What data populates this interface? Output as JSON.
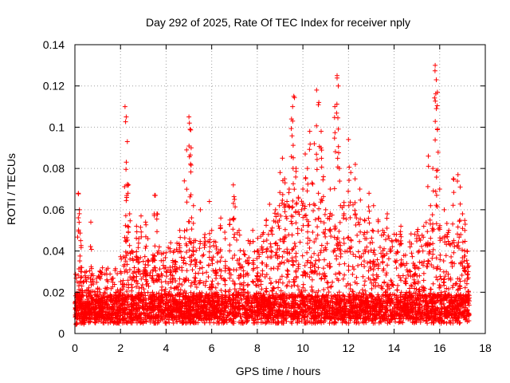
{
  "chart_data": {
    "type": "scatter",
    "title": "Day 292 of 2025, Rate Of TEC Index for receiver nply",
    "xlabel": "GPS time / hours",
    "ylabel": "ROTI / TECUs",
    "xlim": [
      0,
      18
    ],
    "ylim": [
      0,
      0.14
    ],
    "xticks": [
      0,
      2,
      4,
      6,
      8,
      10,
      12,
      14,
      16,
      18
    ],
    "xtick_labels": [
      "0",
      "2",
      "4",
      "6",
      "8",
      "10",
      "12",
      "14",
      "16",
      "18"
    ],
    "yticks": [
      0,
      0.02,
      0.04,
      0.06,
      0.08,
      0.1,
      0.12,
      0.14
    ],
    "ytick_labels": [
      "0",
      "0.02",
      "0.04",
      "0.06",
      "0.08",
      "0.1",
      "0.12",
      "0.14"
    ],
    "grid": true,
    "marker": "plus",
    "color": "#ff0000",
    "points": [
      [
        0.05,
        0.01
      ],
      [
        0.1,
        0.025
      ],
      [
        0.15,
        0.068
      ],
      [
        0.2,
        0.06
      ],
      [
        0.25,
        0.045
      ],
      [
        0.3,
        0.032
      ],
      [
        0.35,
        0.015
      ],
      [
        0.4,
        0.012
      ],
      [
        0.5,
        0.03
      ],
      [
        0.6,
        0.018
      ],
      [
        0.7,
        0.054
      ],
      [
        0.8,
        0.028
      ],
      [
        0.9,
        0.012
      ],
      [
        1.0,
        0.022
      ],
      [
        1.1,
        0.03
      ],
      [
        1.2,
        0.015
      ],
      [
        1.4,
        0.026
      ],
      [
        1.6,
        0.012
      ],
      [
        1.8,
        0.02
      ],
      [
        2.0,
        0.03
      ],
      [
        2.1,
        0.024
      ],
      [
        2.2,
        0.11
      ],
      [
        2.25,
        0.105
      ],
      [
        2.3,
        0.093
      ],
      [
        2.35,
        0.072
      ],
      [
        2.4,
        0.058
      ],
      [
        2.5,
        0.04
      ],
      [
        2.6,
        0.03
      ],
      [
        2.7,
        0.052
      ],
      [
        2.8,
        0.046
      ],
      [
        2.9,
        0.057
      ],
      [
        3.0,
        0.035
      ],
      [
        3.1,
        0.054
      ],
      [
        3.2,
        0.046
      ],
      [
        3.4,
        0.036
      ],
      [
        3.5,
        0.067
      ],
      [
        3.6,
        0.058
      ],
      [
        3.7,
        0.042
      ],
      [
        3.8,
        0.025
      ],
      [
        4.0,
        0.03
      ],
      [
        4.2,
        0.044
      ],
      [
        4.4,
        0.035
      ],
      [
        4.6,
        0.05
      ],
      [
        4.8,
        0.074
      ],
      [
        4.9,
        0.089
      ],
      [
        5.0,
        0.105
      ],
      [
        5.05,
        0.099
      ],
      [
        5.1,
        0.09
      ],
      [
        5.2,
        0.062
      ],
      [
        5.3,
        0.045
      ],
      [
        5.5,
        0.06
      ],
      [
        5.7,
        0.048
      ],
      [
        5.9,
        0.064
      ],
      [
        6.0,
        0.05
      ],
      [
        6.2,
        0.042
      ],
      [
        6.4,
        0.056
      ],
      [
        6.6,
        0.035
      ],
      [
        6.8,
        0.055
      ],
      [
        6.95,
        0.072
      ],
      [
        7.0,
        0.065
      ],
      [
        7.2,
        0.05
      ],
      [
        7.4,
        0.04
      ],
      [
        7.6,
        0.045
      ],
      [
        7.8,
        0.05
      ],
      [
        8.0,
        0.04
      ],
      [
        8.2,
        0.042
      ],
      [
        8.4,
        0.055
      ],
      [
        8.6,
        0.05
      ],
      [
        8.8,
        0.06
      ],
      [
        9.0,
        0.078
      ],
      [
        9.1,
        0.085
      ],
      [
        9.2,
        0.075
      ],
      [
        9.3,
        0.064
      ],
      [
        9.4,
        0.07
      ],
      [
        9.5,
        0.104
      ],
      [
        9.55,
        0.11
      ],
      [
        9.6,
        0.115
      ],
      [
        9.7,
        0.08
      ],
      [
        9.8,
        0.066
      ],
      [
        10.0,
        0.07
      ],
      [
        10.1,
        0.087
      ],
      [
        10.2,
        0.08
      ],
      [
        10.3,
        0.098
      ],
      [
        10.4,
        0.073
      ],
      [
        10.5,
        0.092
      ],
      [
        10.6,
        0.118
      ],
      [
        10.7,
        0.112
      ],
      [
        10.8,
        0.098
      ],
      [
        10.9,
        0.076
      ],
      [
        11.0,
        0.06
      ],
      [
        11.2,
        0.07
      ],
      [
        11.4,
        0.11
      ],
      [
        11.5,
        0.125
      ],
      [
        11.55,
        0.12
      ],
      [
        11.6,
        0.08
      ],
      [
        11.8,
        0.062
      ],
      [
        12.0,
        0.094
      ],
      [
        12.1,
        0.078
      ],
      [
        12.3,
        0.082
      ],
      [
        12.5,
        0.07
      ],
      [
        12.7,
        0.055
      ],
      [
        12.9,
        0.068
      ],
      [
        13.1,
        0.062
      ],
      [
        13.3,
        0.055
      ],
      [
        13.5,
        0.05
      ],
      [
        13.7,
        0.058
      ],
      [
        13.9,
        0.045
      ],
      [
        14.1,
        0.048
      ],
      [
        14.3,
        0.052
      ],
      [
        14.5,
        0.038
      ],
      [
        14.7,
        0.042
      ],
      [
        14.9,
        0.032
      ],
      [
        15.1,
        0.04
      ],
      [
        15.3,
        0.052
      ],
      [
        15.5,
        0.086
      ],
      [
        15.6,
        0.062
      ],
      [
        15.7,
        0.08
      ],
      [
        15.8,
        0.13
      ],
      [
        15.85,
        0.123
      ],
      [
        15.9,
        0.117
      ],
      [
        16.0,
        0.07
      ],
      [
        16.2,
        0.06
      ],
      [
        16.4,
        0.05
      ],
      [
        16.6,
        0.075
      ],
      [
        16.8,
        0.077
      ],
      [
        16.9,
        0.071
      ],
      [
        17.0,
        0.058
      ],
      [
        17.1,
        0.05
      ],
      [
        17.2,
        0.04
      ],
      [
        17.25,
        0.03
      ]
    ]
  }
}
